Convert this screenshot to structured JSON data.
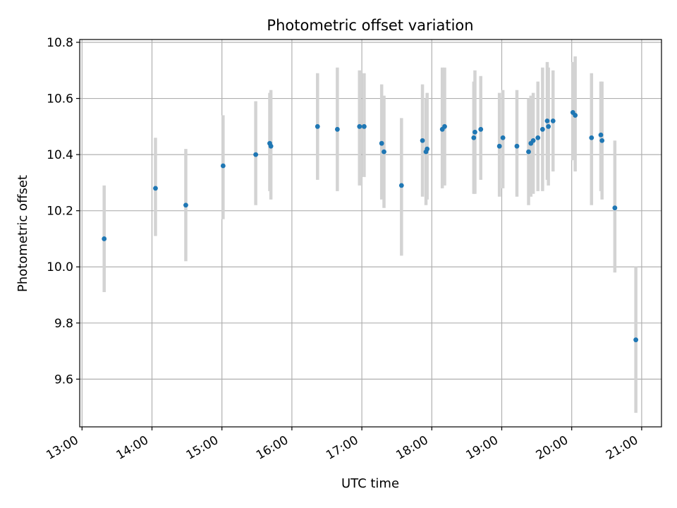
{
  "chart_data": {
    "type": "scatter",
    "title": "Photometric offset variation",
    "xlabel": "UTC time",
    "ylabel": "Photometric offset",
    "xlim": [
      "12:58",
      "21:17"
    ],
    "ylim": [
      9.43,
      10.81
    ],
    "x_ticks": [
      "13:00",
      "14:00",
      "15:00",
      "16:00",
      "17:00",
      "18:00",
      "19:00",
      "20:00",
      "21:00"
    ],
    "y_ticks": [
      9.6,
      9.8,
      10.0,
      10.2,
      10.4,
      10.6,
      10.8
    ],
    "y_tick_labels": [
      "9.6",
      "9.8",
      "10.0",
      "10.2",
      "10.4",
      "10.6",
      "10.8"
    ],
    "grid": true,
    "colors": {
      "point": "#1f77b4",
      "errorbar": "#d3d3d3",
      "grid": "#b0b0b0"
    },
    "points": [
      {
        "x": "13:19",
        "y": 10.1,
        "low": 9.91,
        "high": 10.29
      },
      {
        "x": "14:03",
        "y": 10.28,
        "low": 10.11,
        "high": 10.46
      },
      {
        "x": "14:29",
        "y": 10.22,
        "low": 10.02,
        "high": 10.42
      },
      {
        "x": "15:01",
        "y": 10.36,
        "low": 10.17,
        "high": 10.54
      },
      {
        "x": "15:29",
        "y": 10.4,
        "low": 10.22,
        "high": 10.59
      },
      {
        "x": "15:41",
        "y": 10.44,
        "low": 10.27,
        "high": 10.62
      },
      {
        "x": "15:42",
        "y": 10.43,
        "low": 10.24,
        "high": 10.63
      },
      {
        "x": "16:22",
        "y": 10.5,
        "low": 10.31,
        "high": 10.69
      },
      {
        "x": "16:39",
        "y": 10.49,
        "low": 10.27,
        "high": 10.71
      },
      {
        "x": "16:58",
        "y": 10.5,
        "low": 10.29,
        "high": 10.7
      },
      {
        "x": "17:02",
        "y": 10.5,
        "low": 10.32,
        "high": 10.69
      },
      {
        "x": "17:17",
        "y": 10.44,
        "low": 10.24,
        "high": 10.65
      },
      {
        "x": "17:19",
        "y": 10.41,
        "low": 10.21,
        "high": 10.61
      },
      {
        "x": "17:34",
        "y": 10.29,
        "low": 10.04,
        "high": 10.53
      },
      {
        "x": "17:52",
        "y": 10.45,
        "low": 10.25,
        "high": 10.65
      },
      {
        "x": "17:55",
        "y": 10.41,
        "low": 10.22,
        "high": 10.6
      },
      {
        "x": "17:56",
        "y": 10.42,
        "low": 10.24,
        "high": 10.62
      },
      {
        "x": "18:09",
        "y": 10.49,
        "low": 10.28,
        "high": 10.71
      },
      {
        "x": "18:11",
        "y": 10.5,
        "low": 10.29,
        "high": 10.71
      },
      {
        "x": "18:36",
        "y": 10.46,
        "low": 10.26,
        "high": 10.66
      },
      {
        "x": "18:37",
        "y": 10.48,
        "low": 10.26,
        "high": 10.7
      },
      {
        "x": "18:42",
        "y": 10.49,
        "low": 10.31,
        "high": 10.68
      },
      {
        "x": "18:58",
        "y": 10.43,
        "low": 10.25,
        "high": 10.62
      },
      {
        "x": "19:01",
        "y": 10.46,
        "low": 10.28,
        "high": 10.63
      },
      {
        "x": "19:13",
        "y": 10.43,
        "low": 10.25,
        "high": 10.63
      },
      {
        "x": "19:23",
        "y": 10.41,
        "low": 10.22,
        "high": 10.6
      },
      {
        "x": "19:25",
        "y": 10.44,
        "low": 10.25,
        "high": 10.61
      },
      {
        "x": "19:27",
        "y": 10.45,
        "low": 10.26,
        "high": 10.62
      },
      {
        "x": "19:31",
        "y": 10.46,
        "low": 10.27,
        "high": 10.66
      },
      {
        "x": "19:35",
        "y": 10.49,
        "low": 10.27,
        "high": 10.71
      },
      {
        "x": "19:39",
        "y": 10.52,
        "low": 10.31,
        "high": 10.73
      },
      {
        "x": "19:40",
        "y": 10.5,
        "low": 10.29,
        "high": 10.71
      },
      {
        "x": "19:44",
        "y": 10.52,
        "low": 10.34,
        "high": 10.7
      },
      {
        "x": "20:01",
        "y": 10.55,
        "low": 10.38,
        "high": 10.73
      },
      {
        "x": "20:03",
        "y": 10.54,
        "low": 10.34,
        "high": 10.75
      },
      {
        "x": "20:17",
        "y": 10.46,
        "low": 10.22,
        "high": 10.69
      },
      {
        "x": "20:25",
        "y": 10.47,
        "low": 10.27,
        "high": 10.66
      },
      {
        "x": "20:26",
        "y": 10.45,
        "low": 10.24,
        "high": 10.66
      },
      {
        "x": "20:37",
        "y": 10.21,
        "low": 9.98,
        "high": 10.45
      },
      {
        "x": "20:55",
        "y": 9.74,
        "low": 9.48,
        "high": 10.0
      }
    ]
  }
}
